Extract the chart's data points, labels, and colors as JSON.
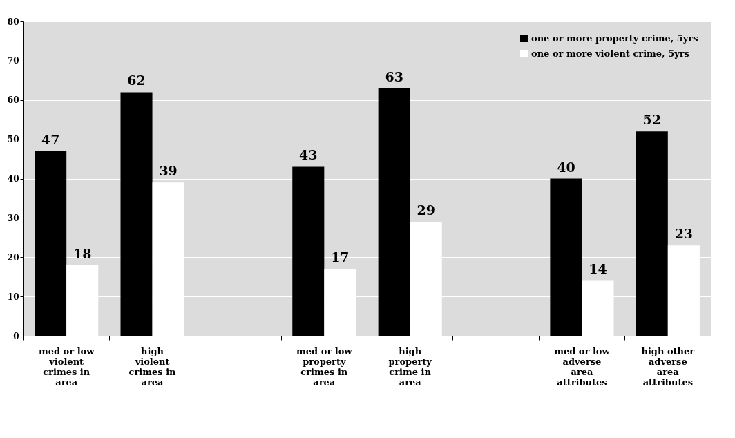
{
  "chart_data": {
    "type": "bar",
    "categories": [
      "med or low violent crimes in area",
      "high violent crimes in area",
      null,
      "med or low property crimes in area",
      "high property crime in area",
      null,
      "med or low adverse area attributes",
      "high other adverse area attributes"
    ],
    "series": [
      {
        "name": "one or more property crime, 5yrs",
        "color": "#000000",
        "values": [
          47,
          62,
          null,
          43,
          63,
          null,
          40,
          52
        ]
      },
      {
        "name": "one or more violent crime, 5yrs",
        "color": "#ffffff",
        "values": [
          18,
          39,
          null,
          17,
          29,
          null,
          14,
          23
        ]
      }
    ],
    "ylim": [
      0,
      80
    ],
    "yticks": [
      0,
      10,
      20,
      30,
      40,
      50,
      60,
      70,
      80
    ],
    "grid": "y",
    "legend": "top right",
    "data_labels": true
  }
}
